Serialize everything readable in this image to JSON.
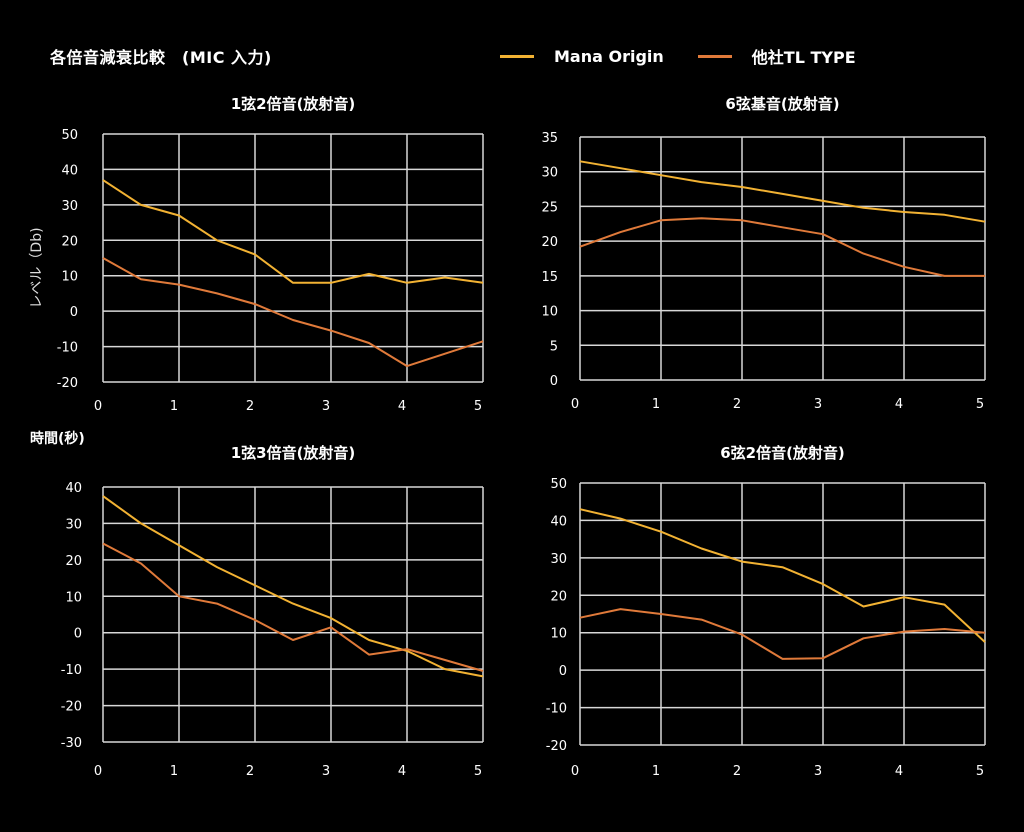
{
  "header": {
    "title": "各倍音減衰比較　(MIC 入力)"
  },
  "legend": {
    "items": [
      {
        "label": "Mana Origin",
        "color": "#f2b233"
      },
      {
        "label": "他社TL TYPE",
        "color": "#e07a3a"
      }
    ]
  },
  "axes": {
    "ylabel": "レベル（Db)",
    "xlabel": "時間(秒)"
  },
  "chart_data": [
    {
      "type": "line",
      "title": "1弦2倍音(放射音)",
      "x": [
        0,
        0.5,
        1,
        1.5,
        2,
        2.5,
        3,
        3.5,
        4,
        4.5,
        5
      ],
      "xticks": [
        0,
        1,
        2,
        3,
        4,
        5
      ],
      "ylim": [
        -20,
        50
      ],
      "yticks": [
        -20,
        -10,
        0,
        10,
        20,
        30,
        40,
        50
      ],
      "grid": true,
      "series": [
        {
          "name": "Mana Origin",
          "values": [
            37,
            30,
            27,
            20,
            16,
            8,
            8,
            10.5,
            8,
            9.5,
            8
          ]
        },
        {
          "name": "他社TL TYPE",
          "values": [
            15,
            9,
            7.5,
            5,
            2,
            -2.5,
            -5.5,
            -9,
            -15.5,
            -12,
            -8.5
          ]
        }
      ]
    },
    {
      "type": "line",
      "title": "6弦基音(放射音)",
      "x": [
        0,
        0.5,
        1,
        1.5,
        2,
        2.5,
        3,
        3.5,
        4,
        4.5,
        5
      ],
      "xticks": [
        0,
        1,
        2,
        3,
        4,
        5
      ],
      "ylim": [
        0,
        35
      ],
      "yticks": [
        0,
        5,
        10,
        15,
        20,
        25,
        30,
        35
      ],
      "grid": true,
      "series": [
        {
          "name": "Mana Origin",
          "values": [
            31.5,
            30.5,
            29.5,
            28.5,
            27.8,
            26.8,
            25.8,
            24.8,
            24.2,
            23.8,
            22.8
          ]
        },
        {
          "name": "他社TL TYPE",
          "values": [
            19.2,
            21.3,
            23,
            23.3,
            23,
            22,
            21,
            18.2,
            16.3,
            15,
            15
          ]
        }
      ]
    },
    {
      "type": "line",
      "title": "1弦3倍音(放射音)",
      "x": [
        0,
        0.5,
        1,
        1.5,
        2,
        2.5,
        3,
        3.5,
        4,
        4.5,
        5
      ],
      "xticks": [
        0,
        1,
        2,
        3,
        4,
        5
      ],
      "ylim": [
        -30,
        40
      ],
      "yticks": [
        -30,
        -20,
        -10,
        0,
        10,
        20,
        30,
        40
      ],
      "grid": true,
      "series": [
        {
          "name": "Mana Origin",
          "values": [
            37.5,
            30,
            24,
            18,
            13,
            8,
            4,
            -2,
            -5,
            -10,
            -12
          ]
        },
        {
          "name": "他社TL TYPE",
          "values": [
            24.5,
            19,
            10,
            8,
            3.5,
            -2,
            1.5,
            -6,
            -4.5,
            -7.5,
            -10.5
          ]
        }
      ]
    },
    {
      "type": "line",
      "title": "6弦2倍音(放射音)",
      "x": [
        0,
        0.5,
        1,
        1.5,
        2,
        2.5,
        3,
        3.5,
        4,
        4.5,
        5
      ],
      "xticks": [
        0,
        1,
        2,
        3,
        4,
        5
      ],
      "ylim": [
        -20,
        50
      ],
      "yticks": [
        -20,
        -10,
        0,
        10,
        20,
        30,
        40,
        50
      ],
      "grid": true,
      "series": [
        {
          "name": "Mana Origin",
          "values": [
            43,
            40.5,
            37,
            32.5,
            29,
            27.5,
            23,
            17,
            19.5,
            17.5,
            7.5
          ]
        },
        {
          "name": "他社TL TYPE",
          "values": [
            14,
            16.3,
            15,
            13.5,
            9.5,
            3,
            3.2,
            8.5,
            10.3,
            11,
            10
          ]
        }
      ]
    }
  ]
}
